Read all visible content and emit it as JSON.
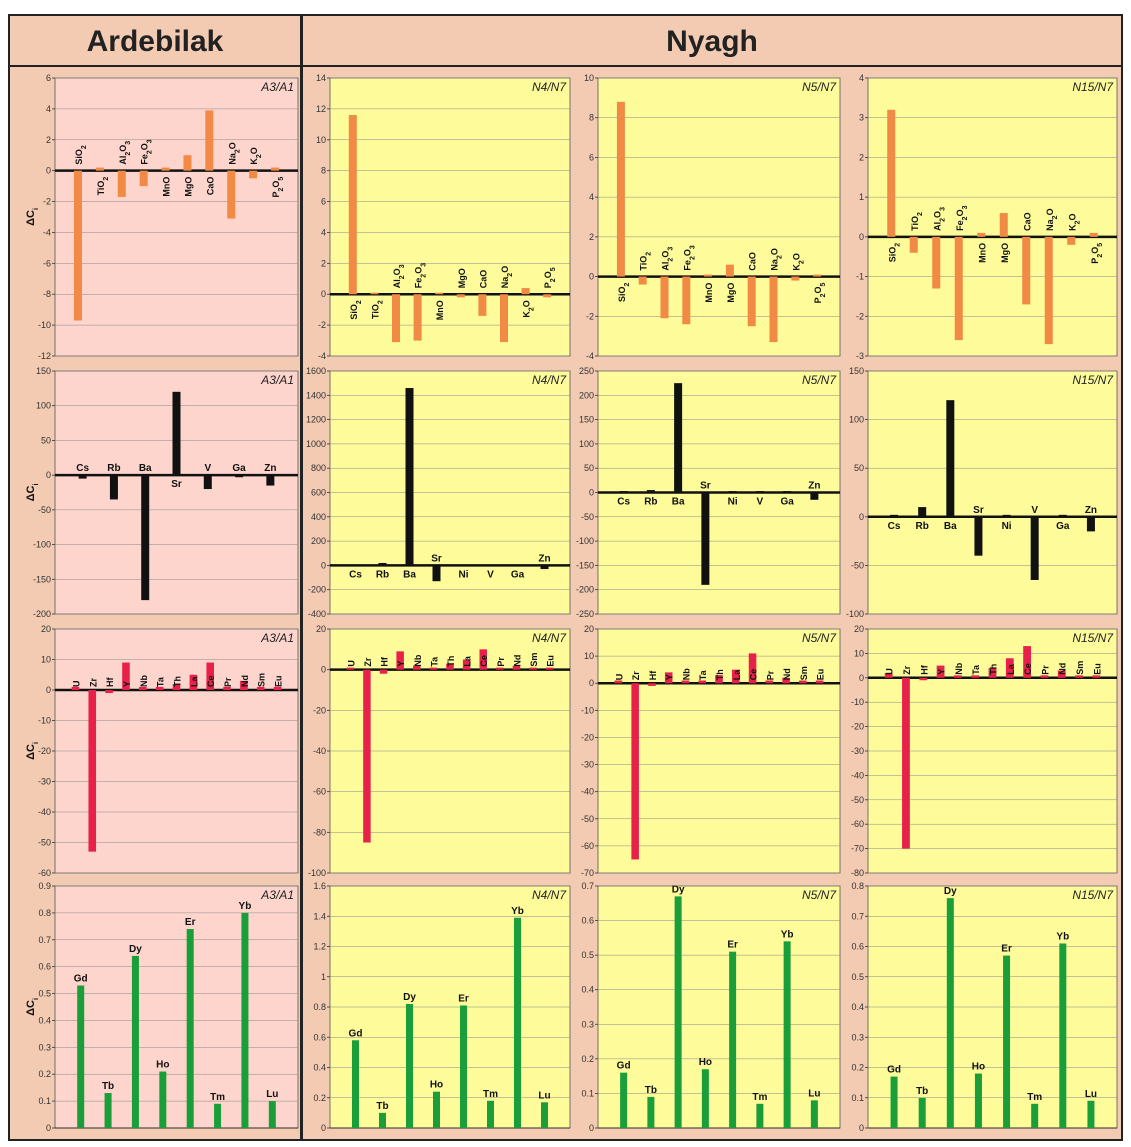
{
  "headers": {
    "left": "Ardebilak",
    "right": "Nyagh"
  },
  "ylabel": "ΔC",
  "ylabel_sub": "i",
  "colors": {
    "orange": "#f08a45",
    "black": "#111111",
    "red": "#e8214b",
    "green": "#1a9e3a",
    "pink_bg": "#fdd5cc",
    "yellow_bg": "#fdfb9a"
  },
  "chart_data": [
    {
      "id": "maj-A",
      "type": "bar",
      "panel": "A3/A1",
      "row": 0,
      "col": 0,
      "color": "orange",
      "ylim": [
        -12,
        6
      ],
      "ticks": [
        -12,
        -10,
        -8,
        -6,
        -4,
        -2,
        0,
        2,
        4,
        6
      ],
      "categories": [
        "SiO2",
        "TiO2",
        "Al2O3",
        "Fe2O3",
        "MnO",
        "MgO",
        "CaO",
        "Na2O",
        "K2O",
        "P2O5"
      ],
      "values": [
        -9.7,
        0.2,
        -1.7,
        -1.0,
        0.2,
        1.0,
        3.9,
        -3.1,
        -0.5,
        0.2
      ]
    },
    {
      "id": "maj-N4",
      "type": "bar",
      "panel": "N4/N7",
      "row": 0,
      "col": 1,
      "color": "orange",
      "ylim": [
        -4,
        14
      ],
      "ticks": [
        -4,
        -2,
        0,
        2,
        4,
        6,
        8,
        10,
        12,
        14
      ],
      "categories": [
        "SiO2",
        "TiO2",
        "Al2O3",
        "Fe2O3",
        "MnO",
        "MgO",
        "CaO",
        "Na2O",
        "K2O",
        "P2O5"
      ],
      "values": [
        11.6,
        0.1,
        -3.1,
        -3.0,
        0.1,
        -0.2,
        -1.4,
        -3.1,
        0.4,
        -0.2
      ]
    },
    {
      "id": "maj-N5",
      "type": "bar",
      "panel": "N5/N7",
      "row": 0,
      "col": 2,
      "color": "orange",
      "ylim": [
        -4,
        10
      ],
      "ticks": [
        -4,
        -2,
        0,
        2,
        4,
        6,
        8,
        10
      ],
      "categories": [
        "SiO2",
        "TiO2",
        "Al2O3",
        "Fe2O3",
        "MnO",
        "MgO",
        "CaO",
        "Na2O",
        "K2O",
        "P2O5"
      ],
      "values": [
        8.8,
        -0.4,
        -2.1,
        -2.4,
        0.1,
        0.6,
        -2.5,
        -3.3,
        -0.2,
        0.1
      ]
    },
    {
      "id": "maj-N15",
      "type": "bar",
      "panel": "N15/N7",
      "row": 0,
      "col": 3,
      "color": "orange",
      "ylim": [
        -3,
        4
      ],
      "ticks": [
        -3,
        -2,
        -1,
        0,
        1,
        2,
        3,
        4
      ],
      "categories": [
        "SiO2",
        "TiO2",
        "Al2O3",
        "Fe2O3",
        "MnO",
        "MgO",
        "CaO",
        "Na2O",
        "K2O",
        "P2O5"
      ],
      "values": [
        3.2,
        -0.4,
        -1.3,
        -2.6,
        0.1,
        0.6,
        -1.7,
        -2.7,
        -0.2,
        0.1
      ]
    },
    {
      "id": "lile-A",
      "type": "bar",
      "panel": "A3/A1",
      "row": 1,
      "col": 0,
      "color": "black",
      "ylim": [
        -200,
        150
      ],
      "ticks": [
        -200,
        -150,
        -100,
        -50,
        0,
        50,
        100,
        150
      ],
      "categories": [
        "Cs",
        "Rb",
        "Ba",
        "Sr",
        "V",
        "Ga",
        "Zn"
      ],
      "values": [
        -5,
        -35,
        -180,
        120,
        -20,
        -3,
        -15
      ]
    },
    {
      "id": "lile-N4",
      "type": "bar",
      "panel": "N4/N7",
      "row": 1,
      "col": 1,
      "color": "black",
      "ylim": [
        -400,
        1600
      ],
      "ticks": [
        -400,
        -200,
        0,
        200,
        400,
        600,
        800,
        1000,
        1200,
        1400,
        1600
      ],
      "categories": [
        "Cs",
        "Rb",
        "Ba",
        "Sr",
        "Ni",
        "V",
        "Ga",
        "Zn"
      ],
      "values": [
        5,
        20,
        1460,
        -130,
        5,
        5,
        5,
        -30
      ]
    },
    {
      "id": "lile-N5",
      "type": "bar",
      "panel": "N5/N7",
      "row": 1,
      "col": 2,
      "color": "black",
      "ylim": [
        -250,
        250
      ],
      "ticks": [
        -250,
        -200,
        -150,
        -100,
        -50,
        0,
        50,
        100,
        150,
        200,
        250
      ],
      "categories": [
        "Cs",
        "Rb",
        "Ba",
        "Sr",
        "Ni",
        "V",
        "Ga",
        "Zn"
      ],
      "values": [
        3,
        5,
        225,
        -190,
        3,
        3,
        3,
        -15
      ]
    },
    {
      "id": "lile-N15",
      "type": "bar",
      "panel": "N15/N7",
      "row": 1,
      "col": 3,
      "color": "black",
      "ylim": [
        -100,
        150
      ],
      "ticks": [
        -100,
        -50,
        0,
        50,
        100,
        150
      ],
      "categories": [
        "Cs",
        "Rb",
        "Ba",
        "Sr",
        "Ni",
        "V",
        "Ga",
        "Zn"
      ],
      "values": [
        2,
        10,
        120,
        -40,
        2,
        -65,
        2,
        -15
      ]
    },
    {
      "id": "hfse-A",
      "type": "bar",
      "panel": "A3/A1",
      "row": 2,
      "col": 0,
      "color": "red",
      "ylim": [
        -60,
        20
      ],
      "ticks": [
        -60,
        -50,
        -40,
        -30,
        -20,
        -10,
        0,
        10,
        20
      ],
      "categories": [
        "U",
        "Zr",
        "Hf",
        "Y",
        "Nb",
        "Ta",
        "Th",
        "La",
        "Ce",
        "Pr",
        "Nd",
        "Sm",
        "Eu"
      ],
      "values": [
        1,
        -53,
        -1,
        9,
        1,
        1,
        2,
        5,
        9,
        1,
        3,
        1,
        1
      ]
    },
    {
      "id": "hfse-N4",
      "type": "bar",
      "panel": "N4/N7",
      "row": 2,
      "col": 1,
      "color": "red",
      "ylim": [
        -100,
        20
      ],
      "ticks": [
        -100,
        -80,
        -60,
        -40,
        -20,
        0,
        20
      ],
      "categories": [
        "U",
        "Zr",
        "Hf",
        "Y",
        "Nb",
        "Ta",
        "Th",
        "La",
        "Ce",
        "Pr",
        "Nd",
        "Sm",
        "Eu"
      ],
      "values": [
        1,
        -85,
        -2,
        9,
        2,
        1,
        3,
        5,
        10,
        1,
        2,
        1,
        1
      ]
    },
    {
      "id": "hfse-N5",
      "type": "bar",
      "panel": "N5/N7",
      "row": 2,
      "col": 2,
      "color": "red",
      "ylim": [
        -70,
        20
      ],
      "ticks": [
        -70,
        -60,
        -50,
        -40,
        -30,
        -20,
        -10,
        0,
        10,
        20
      ],
      "categories": [
        "U",
        "Zr",
        "Hf",
        "Y",
        "Nb",
        "Ta",
        "Th",
        "La",
        "Ce",
        "Pr",
        "Nd",
        "Sm",
        "Eu"
      ],
      "values": [
        1,
        -65,
        -1,
        4,
        1,
        1,
        3,
        5,
        11,
        1,
        2,
        1,
        1
      ]
    },
    {
      "id": "hfse-N15",
      "type": "bar",
      "panel": "N15/N7",
      "row": 2,
      "col": 3,
      "color": "red",
      "ylim": [
        -80,
        20
      ],
      "ticks": [
        -80,
        -70,
        -60,
        -50,
        -40,
        -30,
        -20,
        -10,
        0,
        10,
        20
      ],
      "categories": [
        "U",
        "Zr",
        "Hf",
        "Y",
        "Nb",
        "Ta",
        "Th",
        "La",
        "Ce",
        "Pr",
        "Nd",
        "Sm",
        "Eu"
      ],
      "values": [
        2,
        -70,
        -1,
        5,
        1,
        1,
        4,
        8,
        13,
        1,
        3,
        1,
        1
      ]
    },
    {
      "id": "ree-A",
      "type": "bar",
      "panel": "A3/A1",
      "row": 3,
      "col": 0,
      "color": "green",
      "ylim": [
        0,
        0.9
      ],
      "ticks": [
        0,
        0.1,
        0.2,
        0.3,
        0.4,
        0.5,
        0.6,
        0.7,
        0.8,
        0.9
      ],
      "categories": [
        "Gd",
        "Tb",
        "Dy",
        "Ho",
        "Er",
        "Tm",
        "Yb",
        "Lu"
      ],
      "values": [
        0.53,
        0.13,
        0.64,
        0.21,
        0.74,
        0.09,
        0.8,
        0.1
      ]
    },
    {
      "id": "ree-N4",
      "type": "bar",
      "panel": "N4/N7",
      "row": 3,
      "col": 1,
      "color": "green",
      "ylim": [
        0,
        1.6
      ],
      "ticks": [
        0,
        0.2,
        0.4,
        0.6,
        0.8,
        1.0,
        1.2,
        1.4,
        1.6
      ],
      "categories": [
        "Gd",
        "Tb",
        "Dy",
        "Ho",
        "Er",
        "Tm",
        "Yb",
        "Lu"
      ],
      "values": [
        0.58,
        0.1,
        0.82,
        0.24,
        0.81,
        0.18,
        1.39,
        0.17
      ]
    },
    {
      "id": "ree-N5",
      "type": "bar",
      "panel": "N5/N7",
      "row": 3,
      "col": 2,
      "color": "green",
      "ylim": [
        0,
        0.7
      ],
      "ticks": [
        0,
        0.1,
        0.2,
        0.3,
        0.4,
        0.5,
        0.6,
        0.7
      ],
      "categories": [
        "Gd",
        "Tb",
        "Dy",
        "Ho",
        "Er",
        "Tm",
        "Yb",
        "Lu"
      ],
      "values": [
        0.16,
        0.09,
        0.67,
        0.17,
        0.51,
        0.07,
        0.54,
        0.08
      ]
    },
    {
      "id": "ree-N15",
      "type": "bar",
      "panel": "N15/N7",
      "row": 3,
      "col": 3,
      "color": "green",
      "ylim": [
        0,
        0.8
      ],
      "ticks": [
        0,
        0.1,
        0.2,
        0.3,
        0.4,
        0.5,
        0.6,
        0.7,
        0.8
      ],
      "categories": [
        "Gd",
        "Tb",
        "Dy",
        "Ho",
        "Er",
        "Tm",
        "Yb",
        "Lu"
      ],
      "values": [
        0.17,
        0.1,
        0.76,
        0.18,
        0.57,
        0.08,
        0.61,
        0.09
      ]
    }
  ]
}
